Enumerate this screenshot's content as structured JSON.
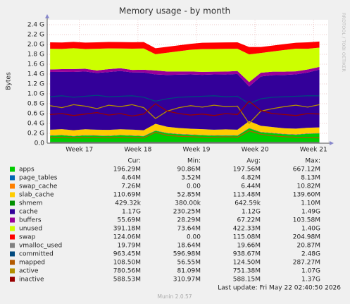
{
  "chart_data": {
    "type": "munin",
    "title": "Memory usage - by month",
    "y_label": "Bytes",
    "side_text": "RRDTOOL / TOBI OETIKER",
    "last_update": "Last update: Fri May 22 02:40:50 2026",
    "footer": "Munin 2.0.57",
    "grid": true,
    "legend_columns": [
      "Cur:",
      "Min:",
      "Avg:",
      "Max:"
    ],
    "xlim": [
      16.45,
      21.25
    ],
    "xticks": [
      {
        "value": 17,
        "label": "Week 17"
      },
      {
        "value": 18,
        "label": "Week 18"
      },
      {
        "value": 19,
        "label": "Week 19"
      },
      {
        "value": 20,
        "label": "Week 20"
      },
      {
        "value": 21,
        "label": "Week 21"
      }
    ],
    "ylim": [
      0,
      2500000000.0
    ],
    "yticks": [
      {
        "value": 0,
        "label": "0.0"
      },
      {
        "value": 200000000.0,
        "label": "0.2 G"
      },
      {
        "value": 400000000.0,
        "label": "0.4 G"
      },
      {
        "value": 600000000.0,
        "label": "0.6 G"
      },
      {
        "value": 800000000.0,
        "label": "0.8 G"
      },
      {
        "value": 1000000000.0,
        "label": "1.0 G"
      },
      {
        "value": 1200000000.0,
        "label": "1.2 G"
      },
      {
        "value": 1400000000.0,
        "label": "1.4 G"
      },
      {
        "value": 1600000000.0,
        "label": "1.6 G"
      },
      {
        "value": 1800000000.0,
        "label": "1.8 G"
      },
      {
        "value": 2000000000.0,
        "label": "2.0 G"
      },
      {
        "value": 2200000000.0,
        "label": "2.2 G"
      },
      {
        "value": 2400000000.0,
        "label": "2.4 G"
      }
    ],
    "x": [
      16.5,
      16.7,
      16.9,
      17.1,
      17.3,
      17.5,
      17.7,
      17.9,
      18.1,
      18.3,
      18.5,
      18.7,
      18.9,
      19.1,
      19.3,
      19.5,
      19.7,
      19.9,
      20.1,
      20.3,
      20.5,
      20.7,
      20.9,
      21.1
    ],
    "series": [
      {
        "name": "apps",
        "color": "#00cc00",
        "style": "stack",
        "stats": [
          "196.29M",
          "90.86M",
          "197.56M",
          "667.12M"
        ],
        "values": [
          150000000.0,
          160000000.0,
          140000000.0,
          155000000.0,
          150000000.0,
          145000000.0,
          160000000.0,
          150000000.0,
          140000000.0,
          250000000.0,
          200000000.0,
          180000000.0,
          170000000.0,
          160000000.0,
          150000000.0,
          155000000.0,
          150000000.0,
          300000000.0,
          220000000.0,
          200000000.0,
          180000000.0,
          170000000.0,
          190000000.0,
          196000000.0
        ]
      },
      {
        "name": "page_tables",
        "color": "#0066b3",
        "style": "stack",
        "stats": [
          "4.64M",
          "3.52M",
          "4.82M",
          "8.13M"
        ],
        "values": [
          5000000.0,
          5000000.0,
          5000000.0,
          5000000.0,
          5000000.0,
          5000000.0,
          5000000.0,
          5000000.0,
          5000000.0,
          5000000.0,
          5000000.0,
          5000000.0,
          5000000.0,
          5000000.0,
          5000000.0,
          5000000.0,
          5000000.0,
          5000000.0,
          5000000.0,
          5000000.0,
          5000000.0,
          5000000.0,
          5000000.0,
          4600000.0
        ]
      },
      {
        "name": "swap_cache",
        "color": "#ff8000",
        "style": "stack",
        "stats": [
          "7.26M",
          "0.00",
          "6.44M",
          "10.82M"
        ],
        "values": [
          7000000.0,
          7000000.0,
          7000000.0,
          7000000.0,
          7000000.0,
          7000000.0,
          7000000.0,
          7000000.0,
          7000000.0,
          7000000.0,
          7000000.0,
          7000000.0,
          7000000.0,
          7000000.0,
          7000000.0,
          7000000.0,
          7000000.0,
          7000000.0,
          7000000.0,
          7000000.0,
          7000000.0,
          7000000.0,
          7000000.0,
          7300000.0
        ]
      },
      {
        "name": "slab_cache",
        "color": "#ffcc00",
        "style": "stack",
        "stats": [
          "110.69M",
          "52.85M",
          "113.48M",
          "139.60M"
        ],
        "values": [
          110000000.0,
          112000000.0,
          110000000.0,
          115000000.0,
          110000000.0,
          113000000.0,
          110000000.0,
          112000000.0,
          110000000.0,
          130000000.0,
          120000000.0,
          115000000.0,
          110000000.0,
          112000000.0,
          110000000.0,
          113000000.0,
          110000000.0,
          135000000.0,
          120000000.0,
          115000000.0,
          110000000.0,
          112000000.0,
          110000000.0,
          111000000.0
        ]
      },
      {
        "name": "shmem",
        "color": "#008f00",
        "style": "stack",
        "stats": [
          "429.32k",
          "380.00k",
          "642.59k",
          "1.10M"
        ],
        "values": [
          400000.0,
          400000.0,
          400000.0,
          400000.0,
          400000.0,
          400000.0,
          400000.0,
          400000.0,
          400000.0,
          600000.0,
          600000.0,
          600000.0,
          600000.0,
          600000.0,
          600000.0,
          600000.0,
          600000.0,
          600000.0,
          600000.0,
          600000.0,
          600000.0,
          600000.0,
          400000.0,
          430000.0
        ]
      },
      {
        "name": "cache",
        "color": "#330099",
        "style": "stack",
        "stats": [
          "1.17G",
          "230.25M",
          "1.12G",
          "1.49G"
        ],
        "values": [
          1170000000.0,
          1160000000.0,
          1180000000.0,
          1170000000.0,
          1150000000.0,
          1170000000.0,
          1180000000.0,
          1160000000.0,
          1170000000.0,
          1000000000.0,
          1050000000.0,
          1080000000.0,
          1100000000.0,
          1100000000.0,
          1120000000.0,
          1110000000.0,
          1130000000.0,
          700000000.0,
          1000000000.0,
          1050000000.0,
          1080000000.0,
          1100000000.0,
          1120000000.0,
          1170000000.0
        ]
      },
      {
        "name": "buffers",
        "color": "#990099",
        "style": "stack",
        "stats": [
          "55.69M",
          "28.29M",
          "67.22M",
          "103.58M"
        ],
        "values": [
          50000000.0,
          55000000.0,
          60000000.0,
          55000000.0,
          50000000.0,
          60000000.0,
          55000000.0,
          50000000.0,
          55000000.0,
          80000000.0,
          70000000.0,
          65000000.0,
          60000000.0,
          60000000.0,
          55000000.0,
          60000000.0,
          60000000.0,
          90000000.0,
          75000000.0,
          70000000.0,
          65000000.0,
          60000000.0,
          60000000.0,
          56000000.0
        ]
      },
      {
        "name": "unused",
        "color": "#ccff00",
        "style": "stack",
        "stats": [
          "391.18M",
          "73.64M",
          "422.33M",
          "1.40G"
        ],
        "values": [
          420000000.0,
          410000000.0,
          420000000.0,
          400000000.0,
          440000000.0,
          420000000.0,
          400000000.0,
          430000000.0,
          430000000.0,
          330000000.0,
          380000000.0,
          410000000.0,
          440000000.0,
          460000000.0,
          460000000.0,
          460000000.0,
          450000000.0,
          560000000.0,
          400000000.0,
          410000000.0,
          440000000.0,
          460000000.0,
          420000000.0,
          390000000.0
        ]
      },
      {
        "name": "swap",
        "color": "#ff0000",
        "style": "stack",
        "stats": [
          "124.06M",
          "0.00",
          "115.08M",
          "204.98M"
        ],
        "values": [
          130000000.0,
          130000000.0,
          130000000.0,
          130000000.0,
          130000000.0,
          130000000.0,
          130000000.0,
          130000000.0,
          130000000.0,
          120000000.0,
          120000000.0,
          120000000.0,
          120000000.0,
          130000000.0,
          130000000.0,
          130000000.0,
          130000000.0,
          150000000.0,
          120000000.0,
          120000000.0,
          120000000.0,
          120000000.0,
          130000000.0,
          124000000.0
        ]
      },
      {
        "name": "vmalloc_used",
        "color": "#808080",
        "style": "line",
        "stats": [
          "19.79M",
          "18.64M",
          "19.66M",
          "20.87M"
        ],
        "values": [
          20000000.0,
          20000000.0,
          20000000.0,
          20000000.0,
          20000000.0,
          20000000.0,
          20000000.0,
          20000000.0,
          20000000.0,
          20000000.0,
          20000000.0,
          20000000.0,
          20000000.0,
          20000000.0,
          20000000.0,
          20000000.0,
          20000000.0,
          20000000.0,
          20000000.0,
          20000000.0,
          20000000.0,
          20000000.0,
          20000000.0,
          20000000.0
        ]
      },
      {
        "name": "committed",
        "color": "#00487d",
        "style": "line",
        "stats": [
          "963.45M",
          "596.98M",
          "938.67M",
          "2.48G"
        ],
        "values": [
          940000000.0,
          960000000.0,
          930000000.0,
          950000000.0,
          970000000.0,
          940000000.0,
          950000000.0,
          960000000.0,
          930000000.0,
          850000000.0,
          900000000.0,
          930000000.0,
          940000000.0,
          950000000.0,
          960000000.0,
          940000000.0,
          950000000.0,
          800000000.0,
          900000000.0,
          930000000.0,
          940000000.0,
          950000000.0,
          960000000.0,
          960000000.0
        ]
      },
      {
        "name": "mapped",
        "color": "#b35a00",
        "style": "line",
        "stats": [
          "108.50M",
          "56.55M",
          "124.50M",
          "287.27M"
        ],
        "values": [
          110000000.0,
          120000000.0,
          110000000.0,
          115000000.0,
          120000000.0,
          110000000.0,
          120000000.0,
          110000000.0,
          110000000.0,
          220000000.0,
          160000000.0,
          140000000.0,
          130000000.0,
          120000000.0,
          120000000.0,
          130000000.0,
          120000000.0,
          250000000.0,
          180000000.0,
          150000000.0,
          130000000.0,
          120000000.0,
          120000000.0,
          108000000.0
        ]
      },
      {
        "name": "active",
        "color": "#b38f00",
        "style": "line",
        "stats": [
          "780.56M",
          "81.09M",
          "751.38M",
          "1.07G"
        ],
        "values": [
          760000000.0,
          720000000.0,
          780000000.0,
          750000000.0,
          700000000.0,
          770000000.0,
          740000000.0,
          780000000.0,
          720000000.0,
          500000000.0,
          650000000.0,
          720000000.0,
          760000000.0,
          730000000.0,
          770000000.0,
          740000000.0,
          750000000.0,
          400000000.0,
          650000000.0,
          700000000.0,
          740000000.0,
          770000000.0,
          730000000.0,
          780000000.0
        ]
      },
      {
        "name": "inactive",
        "color": "#990000",
        "style": "line",
        "stats": [
          "588.53M",
          "310.97M",
          "588.15M",
          "1.37G"
        ],
        "values": [
          580000000.0,
          600000000.0,
          560000000.0,
          590000000.0,
          620000000.0,
          570000000.0,
          600000000.0,
          550000000.0,
          590000000.0,
          800000000.0,
          650000000.0,
          600000000.0,
          570000000.0,
          590000000.0,
          560000000.0,
          600000000.0,
          580000000.0,
          850000000.0,
          660000000.0,
          600000000.0,
          580000000.0,
          560000000.0,
          600000000.0,
          590000000.0
        ]
      }
    ]
  }
}
